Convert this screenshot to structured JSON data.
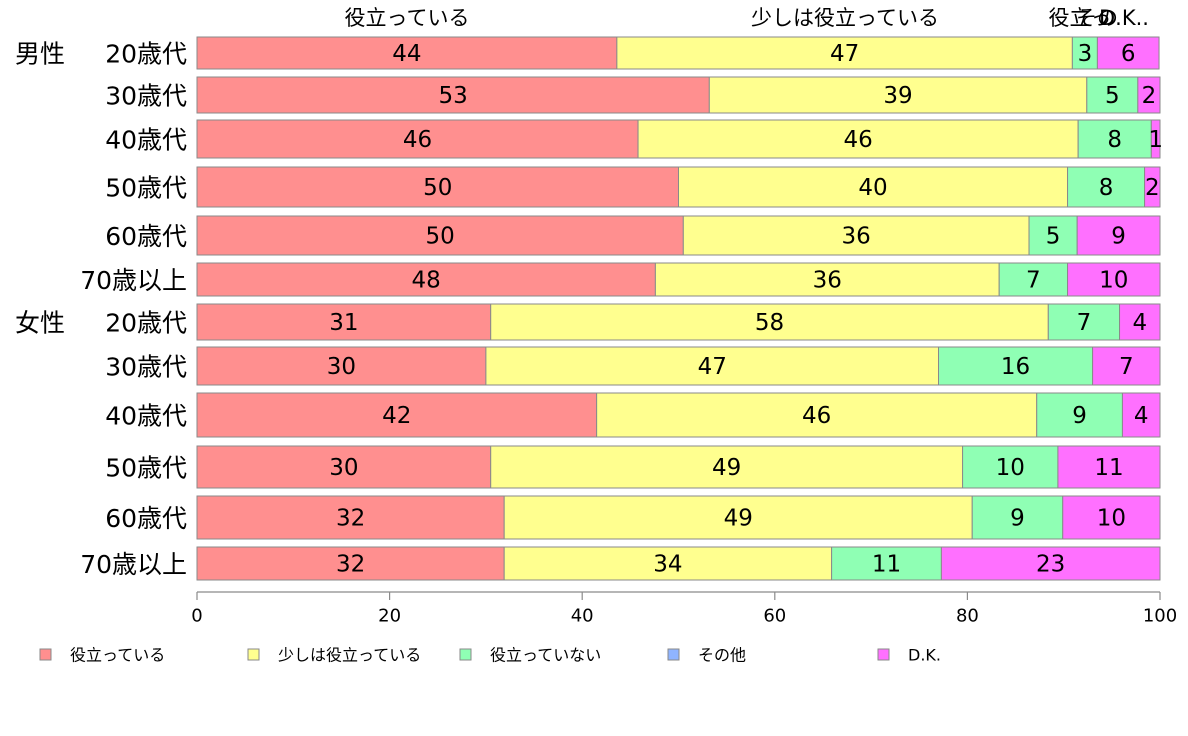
{
  "chart_data": {
    "type": "bar",
    "orientation": "horizontal",
    "stacked": true,
    "groups": [
      "男性",
      "女性"
    ],
    "categories": [
      {
        "group": "男性",
        "label": "20歳代"
      },
      {
        "group": "",
        "label": "30歳代"
      },
      {
        "group": "",
        "label": "40歳代"
      },
      {
        "group": "",
        "label": "50歳代"
      },
      {
        "group": "",
        "label": "60歳代"
      },
      {
        "group": "",
        "label": "70歳以上"
      },
      {
        "group": "女性",
        "label": "20歳代"
      },
      {
        "group": "",
        "label": "30歳代"
      },
      {
        "group": "",
        "label": "40歳代"
      },
      {
        "group": "",
        "label": "50歳代"
      },
      {
        "group": "",
        "label": "60歳代"
      },
      {
        "group": "",
        "label": "70歳以上"
      }
    ],
    "series": [
      {
        "name": "役立っている",
        "color": "#ff8f8f",
        "values": [
          43.6,
          53.2,
          45.8,
          50.0,
          50.5,
          47.6,
          30.5,
          30.0,
          41.5,
          30.5,
          31.9,
          31.9
        ]
      },
      {
        "name": "少しは役立っている",
        "color": "#ffff8f",
        "values": [
          47.3,
          39.2,
          45.7,
          40.4,
          35.9,
          35.7,
          57.9,
          47.0,
          45.7,
          49.0,
          48.6,
          34.0
        ]
      },
      {
        "name": "役立っていない",
        "color": "#8fffb4",
        "values": [
          2.6,
          5.3,
          7.6,
          8.0,
          5.0,
          7.1,
          7.4,
          16.0,
          8.9,
          9.9,
          9.4,
          11.4
        ]
      },
      {
        "name": "その他",
        "color": "#8fb4ff",
        "values": [
          0,
          0,
          0,
          0,
          0,
          0,
          0,
          0,
          0,
          0,
          0,
          0
        ]
      },
      {
        "name": "D.K.",
        "color": "#ff70ff",
        "values": [
          6.4,
          2.3,
          0.9,
          1.6,
          8.6,
          9.6,
          4.2,
          7.0,
          3.9,
          10.6,
          10.1,
          22.7
        ]
      }
    ],
    "value_labels": [
      [
        "44",
        "47",
        "3",
        "",
        "6"
      ],
      [
        "53",
        "39",
        "5",
        "",
        "2"
      ],
      [
        "46",
        "46",
        "8",
        "",
        "1"
      ],
      [
        "50",
        "40",
        "8",
        "",
        "2"
      ],
      [
        "50",
        "36",
        "5",
        "",
        "9"
      ],
      [
        "48",
        "36",
        "7",
        "",
        "10"
      ],
      [
        "31",
        "58",
        "7",
        "",
        "4"
      ],
      [
        "30",
        "47",
        "16",
        "",
        "7"
      ],
      [
        "42",
        "46",
        "9",
        "",
        "4"
      ],
      [
        "30",
        "49",
        "10",
        "",
        "11"
      ],
      [
        "32",
        "49",
        "9",
        "",
        "10"
      ],
      [
        "32",
        "34",
        "11",
        "",
        "23"
      ]
    ],
    "top_labels": [
      "役立っている",
      "少しは役立っている",
      "役立っ",
      "その",
      "D.K.."
    ],
    "xlim": [
      0,
      100
    ],
    "xticks": [
      0,
      20,
      40,
      60,
      80,
      100
    ],
    "grid": false,
    "legend_position": "bottom"
  }
}
